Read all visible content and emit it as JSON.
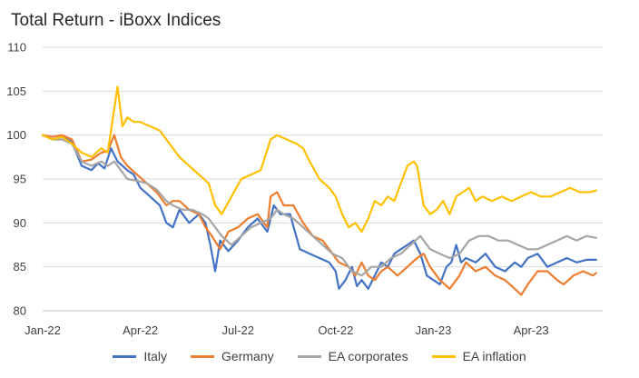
{
  "chart_data": {
    "type": "line",
    "title": "Total Return - iBoxx Indices",
    "xlabel": "",
    "ylabel": "",
    "ylim": [
      80,
      110
    ],
    "y_ticks": [
      80,
      85,
      90,
      95,
      100,
      105,
      110
    ],
    "x_tick_labels": [
      "Jan-22",
      "Apr-22",
      "Jul-22",
      "Oct-22",
      "Jan-23",
      "Apr-23"
    ],
    "x_tick_positions": [
      0,
      3,
      6,
      9,
      12,
      15
    ],
    "xlim": [
      0,
      17.2
    ],
    "grid": "horizontal",
    "legend_position": "bottom",
    "series": [
      {
        "name": "Italy",
        "color": "#4472C4",
        "x": [
          0,
          0.3,
          0.6,
          0.9,
          1.2,
          1.5,
          1.7,
          1.9,
          2.1,
          2.3,
          2.45,
          2.6,
          2.8,
          3.0,
          3.3,
          3.6,
          3.8,
          4.0,
          4.2,
          4.5,
          4.8,
          5.0,
          5.15,
          5.3,
          5.45,
          5.7,
          6.0,
          6.3,
          6.6,
          6.9,
          7.1,
          7.3,
          7.6,
          7.9,
          8.2,
          8.5,
          8.8,
          9.0,
          9.1,
          9.3,
          9.5,
          9.65,
          9.8,
          10.0,
          10.2,
          10.4,
          10.6,
          10.8,
          11.0,
          11.2,
          11.4,
          11.6,
          11.8,
          12.0,
          12.2,
          12.4,
          12.55,
          12.7,
          12.85,
          13.0,
          13.3,
          13.6,
          13.9,
          14.2,
          14.5,
          14.7,
          14.9,
          15.2,
          15.5,
          15.8,
          16.1,
          16.4,
          16.7,
          17.0
        ],
        "values": [
          100,
          99.5,
          99.8,
          99.2,
          96.5,
          96.0,
          96.8,
          96.2,
          98.5,
          97.0,
          96.5,
          96.0,
          95.5,
          94.0,
          93.0,
          92.0,
          90.0,
          89.5,
          91.5,
          90.0,
          91.0,
          90.0,
          87.5,
          84.5,
          88.0,
          86.8,
          88.0,
          89.5,
          90.5,
          89.0,
          92.0,
          91.0,
          91.0,
          87.0,
          86.5,
          86.0,
          85.5,
          84.5,
          82.5,
          83.5,
          85.0,
          82.8,
          83.5,
          82.5,
          84.0,
          85.5,
          85.0,
          86.5,
          87.0,
          87.5,
          88.0,
          86.5,
          84.0,
          83.5,
          83.0,
          85.0,
          85.5,
          87.5,
          85.5,
          86.0,
          85.5,
          86.5,
          85.0,
          84.5,
          85.5,
          85.0,
          86.0,
          86.5,
          85.0,
          85.5,
          86.0,
          85.5,
          85.8,
          85.8
        ]
      },
      {
        "name": "Germany",
        "color": "#ED7D31",
        "x": [
          0,
          0.3,
          0.6,
          0.9,
          1.2,
          1.5,
          1.8,
          2.0,
          2.2,
          2.4,
          2.6,
          2.9,
          3.2,
          3.5,
          3.8,
          4.0,
          4.2,
          4.5,
          4.8,
          5.0,
          5.2,
          5.45,
          5.7,
          6.0,
          6.3,
          6.6,
          6.9,
          7.0,
          7.2,
          7.4,
          7.7,
          8.0,
          8.3,
          8.6,
          8.9,
          9.1,
          9.4,
          9.6,
          9.8,
          10.0,
          10.2,
          10.4,
          10.6,
          10.9,
          11.2,
          11.5,
          11.7,
          11.9,
          12.2,
          12.5,
          12.8,
          13.0,
          13.3,
          13.6,
          13.9,
          14.2,
          14.5,
          14.7,
          14.9,
          15.2,
          15.5,
          15.8,
          16.0,
          16.3,
          16.6,
          16.9,
          17.0
        ],
        "values": [
          100,
          99.8,
          100,
          99.5,
          97.0,
          97.2,
          98.0,
          98.2,
          100.0,
          97.5,
          96.5,
          95.5,
          94.5,
          93.5,
          92.0,
          92.5,
          92.5,
          91.5,
          91.0,
          89.5,
          88.5,
          87.0,
          89.0,
          89.5,
          90.5,
          91.0,
          89.5,
          93.0,
          93.5,
          92.0,
          92.0,
          90.0,
          88.5,
          88.0,
          86.5,
          85.5,
          85.0,
          84.0,
          85.5,
          84.0,
          83.5,
          84.5,
          85.0,
          84.0,
          85.0,
          86.0,
          86.5,
          85.0,
          83.5,
          82.5,
          84.0,
          85.5,
          84.5,
          85.0,
          84.0,
          83.5,
          82.5,
          81.8,
          83.0,
          84.5,
          84.5,
          83.5,
          83.0,
          84.0,
          84.5,
          84.0,
          84.3
        ]
      },
      {
        "name": "EA corporates",
        "color": "#A5A5A5",
        "x": [
          0,
          0.3,
          0.6,
          0.9,
          1.2,
          1.5,
          1.8,
          2.0,
          2.2,
          2.4,
          2.6,
          2.9,
          3.2,
          3.5,
          3.8,
          4.0,
          4.3,
          4.6,
          4.9,
          5.1,
          5.3,
          5.5,
          5.8,
          6.1,
          6.4,
          6.7,
          7.0,
          7.2,
          7.4,
          7.7,
          8.0,
          8.3,
          8.6,
          8.9,
          9.2,
          9.5,
          9.8,
          10.1,
          10.4,
          10.7,
          11.0,
          11.3,
          11.6,
          11.9,
          12.2,
          12.5,
          12.8,
          13.1,
          13.4,
          13.7,
          14.0,
          14.3,
          14.6,
          14.9,
          15.2,
          15.5,
          15.8,
          16.1,
          16.4,
          16.7,
          17.0
        ],
        "values": [
          100,
          99.5,
          99.5,
          99.0,
          97.0,
          96.5,
          97.0,
          96.5,
          97.0,
          96.0,
          95.0,
          94.8,
          94.5,
          93.8,
          92.5,
          92.0,
          91.5,
          91.5,
          91.0,
          90.5,
          89.5,
          88.5,
          87.5,
          88.5,
          89.5,
          90.0,
          90.5,
          91.5,
          91.0,
          90.5,
          89.5,
          88.5,
          87.5,
          86.5,
          86.0,
          84.5,
          84.0,
          85.0,
          85.0,
          86.0,
          86.5,
          87.5,
          88.5,
          87.0,
          86.5,
          86.0,
          86.5,
          88.0,
          88.5,
          88.5,
          88.0,
          88.0,
          87.5,
          87.0,
          87.0,
          87.5,
          88.0,
          88.5,
          88.0,
          88.5,
          88.3
        ]
      },
      {
        "name": "EA inflation",
        "color": "#FFC000",
        "x": [
          0,
          0.3,
          0.6,
          0.9,
          1.2,
          1.5,
          1.8,
          2.0,
          2.2,
          2.3,
          2.45,
          2.6,
          2.8,
          3.0,
          3.3,
          3.6,
          3.9,
          4.2,
          4.5,
          4.8,
          5.1,
          5.3,
          5.5,
          5.8,
          6.1,
          6.4,
          6.7,
          7.0,
          7.2,
          7.5,
          7.8,
          8.0,
          8.2,
          8.5,
          8.8,
          9.0,
          9.2,
          9.4,
          9.6,
          9.8,
          10.0,
          10.2,
          10.4,
          10.6,
          10.8,
          11.0,
          11.2,
          11.4,
          11.5,
          11.7,
          11.9,
          12.1,
          12.3,
          12.5,
          12.7,
          12.9,
          13.1,
          13.3,
          13.5,
          13.8,
          14.1,
          14.4,
          14.7,
          15.0,
          15.3,
          15.6,
          15.9,
          16.2,
          16.5,
          16.8,
          17.0
        ],
        "values": [
          100,
          99.5,
          99.8,
          99.0,
          98.0,
          97.5,
          98.5,
          98.0,
          103.0,
          105.5,
          101.0,
          102.0,
          101.5,
          101.5,
          101.0,
          100.5,
          99.0,
          97.5,
          96.5,
          95.5,
          94.5,
          92.0,
          91.0,
          93.0,
          95.0,
          95.5,
          96.0,
          99.5,
          100.0,
          99.5,
          99.0,
          98.5,
          97.0,
          95.0,
          94.0,
          93.0,
          91.0,
          89.5,
          90.0,
          89.0,
          90.5,
          92.5,
          92.0,
          93.0,
          92.5,
          94.5,
          96.5,
          97.0,
          96.5,
          92.0,
          91.0,
          91.5,
          92.5,
          91.0,
          93.0,
          93.5,
          94.0,
          92.5,
          93.0,
          92.5,
          93.0,
          92.5,
          93.0,
          93.5,
          93.0,
          93.0,
          93.5,
          94.0,
          93.5,
          93.5,
          93.7
        ]
      }
    ]
  }
}
